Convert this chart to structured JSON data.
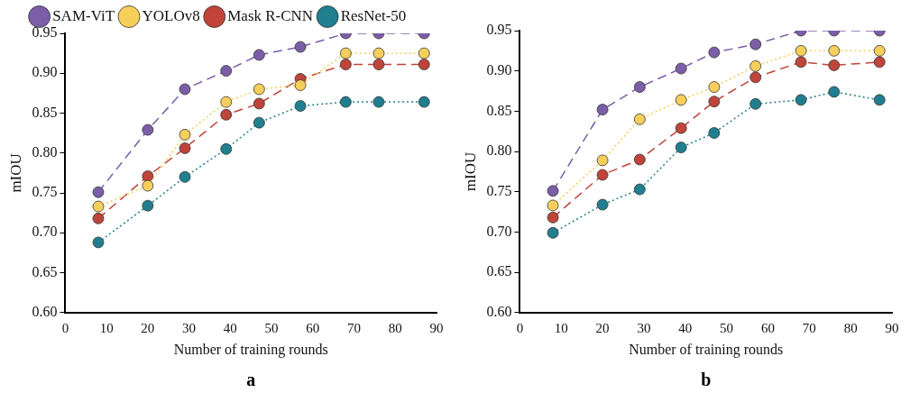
{
  "chart_data": [
    {
      "type": "line",
      "xlabel": "Number of training rounds",
      "ylabel": "mIOU",
      "annotations": [
        "a"
      ],
      "legend": "top",
      "marker": "circle",
      "grid": false,
      "x": [
        8,
        20,
        29,
        39,
        47,
        57,
        68,
        76,
        87
      ],
      "xlim": [
        0,
        90
      ],
      "xticks": [
        0,
        10,
        20,
        30,
        40,
        50,
        60,
        70,
        80,
        90
      ],
      "ylim": [
        0.6,
        0.95
      ],
      "yticks": [
        {
          "value": 0.6,
          "label": "0.60"
        },
        {
          "value": 0.65,
          "label": "0.65"
        },
        {
          "value": 0.7,
          "label": "0.70"
        },
        {
          "value": 0.75,
          "label": "0.75"
        },
        {
          "value": 0.8,
          "label": "0.80"
        },
        {
          "value": 0.85,
          "label": "0.85"
        },
        {
          "value": 0.9,
          "label": "0.90"
        },
        {
          "value": 0.95,
          "label": "0.95"
        }
      ],
      "series": [
        {
          "name": "SAM-ViT",
          "color": "#7b5ea7",
          "line_style": "dashed",
          "values": [
            0.751,
            0.829,
            0.88,
            0.903,
            0.923,
            0.933,
            0.95,
            0.95,
            0.95
          ]
        },
        {
          "name": "YOLOv8",
          "color": "#f5cf5a",
          "line_style": "dotted",
          "values": [
            0.733,
            0.759,
            0.823,
            0.864,
            0.88,
            0.885,
            0.925,
            0.925,
            0.925
          ]
        },
        {
          "name": "Mask R-CNN",
          "color": "#c0443a",
          "line_style": "dashed",
          "values": [
            0.718,
            0.771,
            0.806,
            0.848,
            0.862,
            0.893,
            0.911,
            0.911,
            0.911
          ]
        },
        {
          "name": "ResNet-50",
          "color": "#1f7f8f",
          "line_style": "dotted",
          "values": [
            0.688,
            0.734,
            0.77,
            0.805,
            0.838,
            0.859,
            0.864,
            0.864,
            0.864
          ]
        }
      ]
    },
    {
      "type": "line",
      "xlabel": "Number of training rounds",
      "ylabel": "mIOU",
      "annotations": [
        "b"
      ],
      "marker": "circle",
      "grid": false,
      "x": [
        8,
        20,
        29,
        39,
        47,
        57,
        68,
        76,
        87
      ],
      "xlim": [
        0,
        90
      ],
      "xticks": [
        0,
        10,
        20,
        30,
        40,
        50,
        60,
        70,
        80,
        90
      ],
      "ylim": [
        0.6,
        0.95
      ],
      "yticks": [
        {
          "value": 0.6,
          "label": "0.60"
        },
        {
          "value": 0.65,
          "label": "0.65"
        },
        {
          "value": 0.7,
          "label": "0.70"
        },
        {
          "value": 0.75,
          "label": "0.75"
        },
        {
          "value": 0.8,
          "label": "0.80"
        },
        {
          "value": 0.85,
          "label": "0.85"
        },
        {
          "value": 0.9,
          "label": "0.90"
        },
        {
          "value": 0.95,
          "label": "0.95"
        }
      ],
      "series": [
        {
          "color": "#7b5ea7",
          "line_style": "dashed",
          "values": [
            0.751,
            0.852,
            0.88,
            0.903,
            0.923,
            0.933,
            0.95,
            0.95,
            0.95
          ]
        },
        {
          "color": "#f5cf5a",
          "line_style": "dotted",
          "values": [
            0.733,
            0.789,
            0.84,
            0.864,
            0.88,
            0.906,
            0.925,
            0.925,
            0.925
          ]
        },
        {
          "color": "#c0443a",
          "line_style": "dashed",
          "values": [
            0.718,
            0.771,
            0.79,
            0.829,
            0.862,
            0.892,
            0.911,
            0.907,
            0.911
          ]
        },
        {
          "color": "#1f7f8f",
          "line_style": "dotted",
          "values": [
            0.699,
            0.734,
            0.753,
            0.805,
            0.823,
            0.859,
            0.864,
            0.874,
            0.864
          ]
        }
      ]
    }
  ]
}
